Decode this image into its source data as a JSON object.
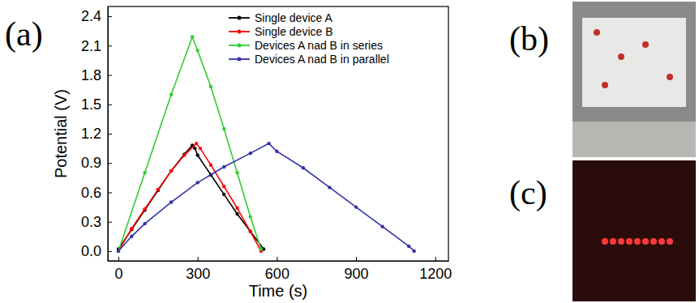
{
  "chart_data": {
    "type": "line",
    "panel_label": "(a)",
    "x_label": "Time (s)",
    "y_label": "Potential (V)",
    "xlim": [
      -40,
      1250
    ],
    "xticks": [
      0,
      300,
      600,
      900,
      1200
    ],
    "ylim": [
      -0.1,
      2.5
    ],
    "yticks": [
      {
        "value": 0,
        "label": "0.0"
      },
      0.3,
      0.6,
      0.9,
      1.2,
      1.5,
      1.8,
      2.1,
      2.4
    ],
    "legend": "upper right",
    "marker": "circle",
    "series": [
      {
        "name": "Single device A",
        "color": "#000000",
        "x": [
          0,
          50,
          100,
          150,
          200,
          250,
          280,
          290,
          300,
          350,
          400,
          450,
          500,
          550
        ],
        "values": [
          0.02,
          0.22,
          0.42,
          0.62,
          0.82,
          0.99,
          1.08,
          1.05,
          0.98,
          0.78,
          0.58,
          0.38,
          0.2,
          0.02
        ]
      },
      {
        "name": "Single device B",
        "color": "#ff0000",
        "x": [
          0,
          50,
          100,
          150,
          200,
          250,
          295,
          310,
          350,
          400,
          450,
          500,
          540
        ],
        "values": [
          0,
          0.23,
          0.43,
          0.63,
          0.82,
          0.98,
          1.1,
          1.05,
          0.88,
          0.66,
          0.44,
          0.2,
          0.0
        ]
      },
      {
        "name": "Devices A nad B in series",
        "color": "#33cc33",
        "x": [
          0,
          100,
          200,
          280,
          300,
          350,
          400,
          450,
          500,
          540
        ],
        "values": [
          0,
          0.8,
          1.6,
          2.19,
          2.05,
          1.68,
          1.25,
          0.8,
          0.35,
          0.02
        ]
      },
      {
        "name": "Devices A nad B in parallel",
        "color": "#3333aa",
        "x": [
          0,
          50,
          100,
          200,
          300,
          400,
          500,
          570,
          600,
          700,
          800,
          900,
          1000,
          1100,
          1120
        ],
        "values": [
          0,
          0.15,
          0.28,
          0.5,
          0.7,
          0.86,
          1.0,
          1.1,
          1.02,
          0.85,
          0.65,
          0.45,
          0.25,
          0.05,
          0.0
        ]
      }
    ]
  },
  "photos": [
    {
      "label": "(b)"
    },
    {
      "label": "(c)"
    }
  ]
}
